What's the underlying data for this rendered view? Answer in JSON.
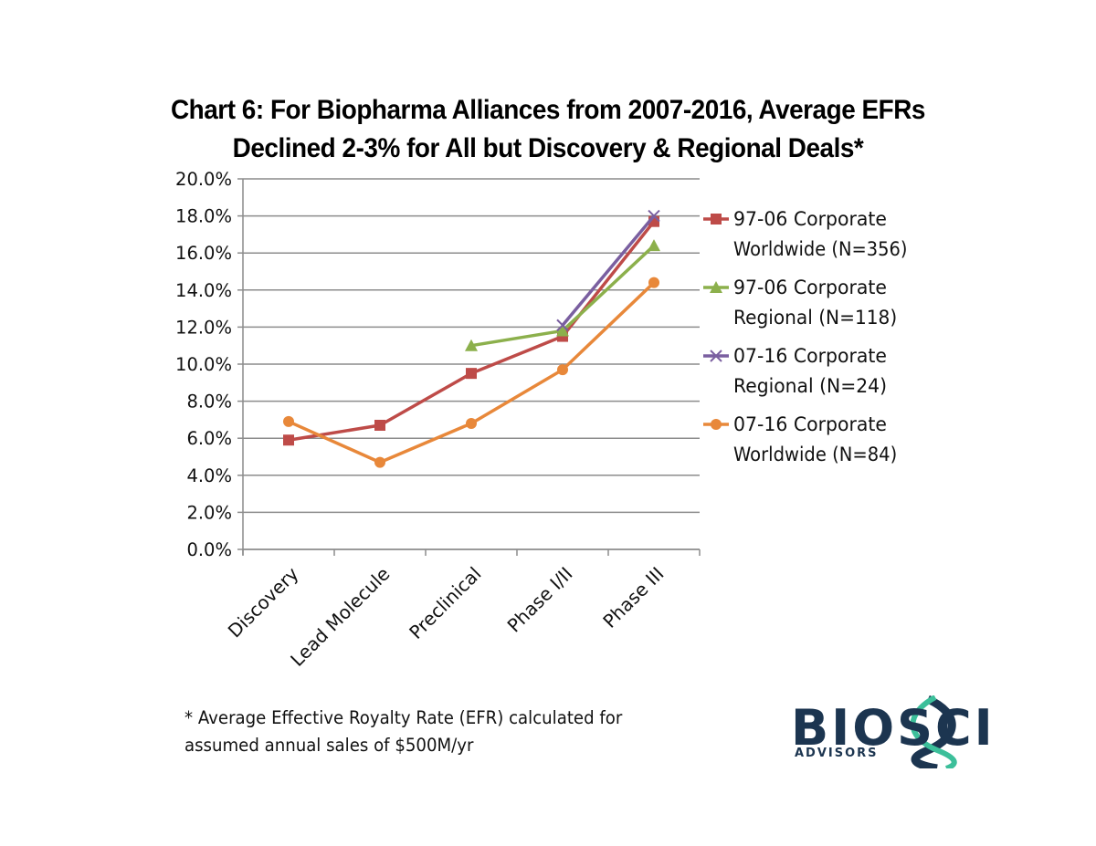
{
  "chart_data": {
    "type": "line",
    "title": [
      "Chart 6:  For Biopharma Alliances from 2007-2016, Average EFRs",
      "Declined 2-3% for All but Discovery & Regional Deals*"
    ],
    "xlabel": "",
    "ylabel": "",
    "categories": [
      "Discovery",
      "Lead Molecule",
      "Preclinical",
      "Phase I/II",
      "Phase III"
    ],
    "ylim": [
      0,
      20
    ],
    "yticks": [
      "0.0%",
      "2.0%",
      "4.0%",
      "6.0%",
      "8.0%",
      "10.0%",
      "12.0%",
      "14.0%",
      "16.0%",
      "18.0%",
      "20.0%"
    ],
    "grid": true,
    "legend_position": "right",
    "series": [
      {
        "name": "97-06 Corporate Worldwide (N=356)",
        "legend_lines": [
          "97-06 Corporate",
          "Worldwide (N=356)"
        ],
        "color": "#be4b48",
        "marker": "square",
        "values": [
          5.9,
          6.7,
          9.5,
          11.5,
          17.7
        ]
      },
      {
        "name": "97-06 Corporate Regional (N=118)",
        "legend_lines": [
          "97-06 Corporate",
          "Regional (N=118)"
        ],
        "color": "#8cb04c",
        "marker": "triangle",
        "values": [
          null,
          null,
          11.0,
          11.8,
          16.4
        ]
      },
      {
        "name": "07-16 Corporate Regional (N=24)",
        "legend_lines": [
          "07-16 Corporate",
          "Regional (N=24)"
        ],
        "color": "#7a5fa0",
        "marker": "x",
        "values": [
          null,
          null,
          null,
          12.1,
          18.0
        ]
      },
      {
        "name": "07-16 Corporate Worldwide (N=84)",
        "legend_lines": [
          "07-16 Corporate",
          "Worldwide (N=84)"
        ],
        "color": "#e8883a",
        "marker": "circle",
        "values": [
          6.9,
          4.7,
          6.8,
          9.7,
          14.4
        ]
      }
    ]
  },
  "footnote": [
    "* Average Effective Royalty Rate (EFR) calculated for",
    "assumed annual sales of $500M/yr"
  ],
  "logo": {
    "main": "BIOSCI",
    "sub": "ADVISORS"
  }
}
